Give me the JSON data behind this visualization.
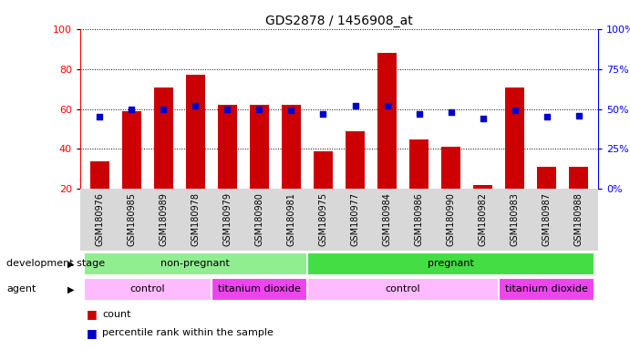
{
  "title": "GDS2878 / 1456908_at",
  "samples": [
    "GSM180976",
    "GSM180985",
    "GSM180989",
    "GSM180978",
    "GSM180979",
    "GSM180980",
    "GSM180981",
    "GSM180975",
    "GSM180977",
    "GSM180984",
    "GSM180986",
    "GSM180990",
    "GSM180982",
    "GSM180983",
    "GSM180987",
    "GSM180988"
  ],
  "counts": [
    34,
    59,
    71,
    77,
    62,
    62,
    62,
    39,
    49,
    88,
    45,
    41,
    22,
    71,
    31,
    31
  ],
  "percentiles": [
    45,
    50,
    50,
    52,
    50,
    50,
    49,
    47,
    52,
    52,
    47,
    48,
    44,
    49,
    45,
    46
  ],
  "bar_color": "#cc0000",
  "dot_color": "#0000cc",
  "ymin": 20,
  "ymax": 100,
  "y2min": 0,
  "y2max": 100,
  "yticks": [
    20,
    40,
    60,
    80,
    100
  ],
  "y2ticks": [
    0,
    25,
    50,
    75,
    100
  ],
  "development_stage_groups": [
    {
      "label": "non-pregnant",
      "start": 0,
      "end": 7,
      "color": "#90ee90"
    },
    {
      "label": "pregnant",
      "start": 7,
      "end": 16,
      "color": "#44dd44"
    }
  ],
  "agent_groups": [
    {
      "label": "control",
      "start": 0,
      "end": 4,
      "color": "#ffbbff"
    },
    {
      "label": "titanium dioxide",
      "start": 4,
      "end": 7,
      "color": "#ee44ee"
    },
    {
      "label": "control",
      "start": 7,
      "end": 13,
      "color": "#ffbbff"
    },
    {
      "label": "titanium dioxide",
      "start": 13,
      "end": 16,
      "color": "#ee44ee"
    }
  ],
  "legend_count_label": "count",
  "legend_percentile_label": "percentile rank within the sample"
}
